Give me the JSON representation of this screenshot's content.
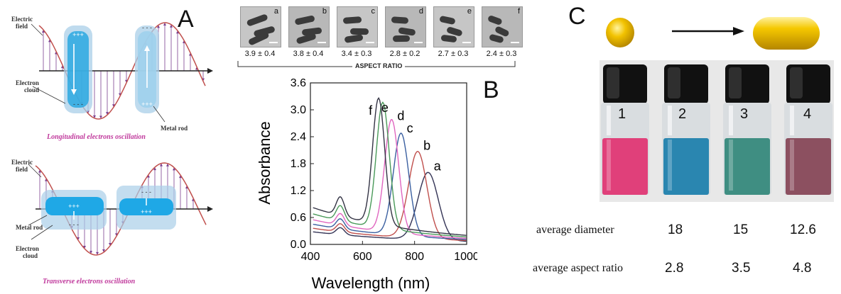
{
  "panel_a": {
    "letter": "A",
    "top": {
      "electric_field": [
        "Electric",
        "field"
      ],
      "electron_cloud": [
        "Electron",
        "cloud"
      ],
      "metal_rod": "Metal rod",
      "caption": "Longitudinal electrons oscillation"
    },
    "bottom": {
      "electric_field": [
        "Electric",
        "field"
      ],
      "metal_rod": "Metal rod",
      "electron_cloud": [
        "Electron",
        "cloud"
      ],
      "caption": "Transverse electrons oscillation"
    },
    "colors": {
      "wave": "#c0504d",
      "arrows": "#7b3f8f",
      "rod": "#2aa8e0",
      "cloud": "#a9cfe8"
    }
  },
  "panel_b": {
    "letter": "B",
    "tem_images": [
      {
        "letter": "a",
        "ratio": "3.9 ± 0.4"
      },
      {
        "letter": "b",
        "ratio": "3.8 ± 0.4"
      },
      {
        "letter": "c",
        "ratio": "3.4 ± 0.3"
      },
      {
        "letter": "d",
        "ratio": "2.8 ± 0.2"
      },
      {
        "letter": "e",
        "ratio": "2.7 ± 0.3"
      },
      {
        "letter": "f",
        "ratio": "2.4 ± 0.3"
      }
    ],
    "aspect_ratio_label": "ASPECT RATIO"
  },
  "chart_data": {
    "type": "line",
    "xlabel": "Wavelength (nm)",
    "ylabel": "Absorbance",
    "xlim": [
      400,
      1000
    ],
    "ylim": [
      0.0,
      3.6
    ],
    "x_ticks": [
      400,
      600,
      800,
      1000
    ],
    "y_ticks": [
      "0.0",
      "0.6",
      "1.2",
      "1.8",
      "2.4",
      "3.0",
      "3.6"
    ],
    "grid": false,
    "series": [
      {
        "name": "a",
        "color": "#333355",
        "baseline": 0.28,
        "peak_x": 852,
        "peak_y": 1.62,
        "tsp_y": 0.38,
        "width": 55
      },
      {
        "name": "b",
        "color": "#c0504d",
        "baseline": 0.36,
        "peak_x": 812,
        "peak_y": 2.08,
        "tsp_y": 0.47,
        "width": 50
      },
      {
        "name": "c",
        "color": "#3a5fa0",
        "baseline": 0.45,
        "peak_x": 748,
        "peak_y": 2.46,
        "tsp_y": 0.58,
        "width": 42
      },
      {
        "name": "d",
        "color": "#e066c0",
        "baseline": 0.55,
        "peak_x": 712,
        "peak_y": 2.74,
        "tsp_y": 0.7,
        "width": 38
      },
      {
        "name": "e",
        "color": "#4a9a5a",
        "baseline": 0.68,
        "peak_x": 678,
        "peak_y": 3.08,
        "tsp_y": 0.88,
        "width": 35
      },
      {
        "name": "f",
        "color": "#333344",
        "baseline": 0.82,
        "peak_x": 662,
        "peak_y": 3.14,
        "tsp_y": 1.08,
        "width": 33
      }
    ]
  },
  "panel_c": {
    "letter": "C",
    "vials": [
      {
        "num": "1",
        "color": "#e0407a"
      },
      {
        "num": "2",
        "color": "#2a86b0"
      },
      {
        "num": "3",
        "color": "#3f8e82"
      },
      {
        "num": "4",
        "color": "#8c5060"
      }
    ],
    "table": {
      "diameter_label": "average diameter",
      "diameter_values": [
        "18",
        "15",
        "12.6"
      ],
      "aspect_label": "average aspect ratio",
      "aspect_values": [
        "2.8",
        "3.5",
        "4.8"
      ]
    },
    "gold_color": "#f2c200"
  }
}
